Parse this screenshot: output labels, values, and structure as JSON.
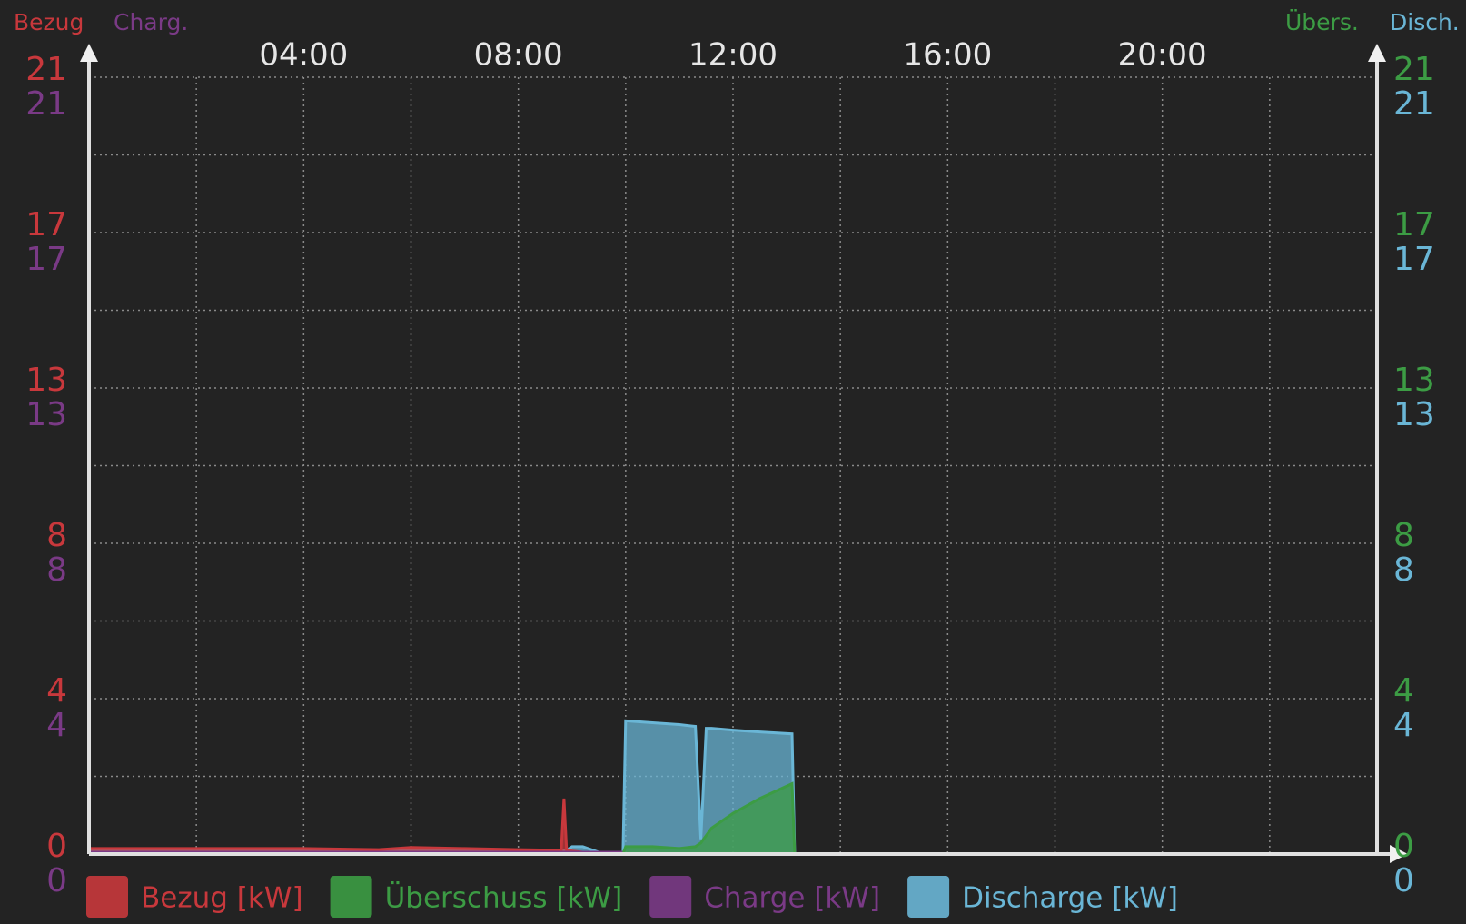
{
  "chart_data": {
    "type": "area",
    "x": [
      0,
      2,
      4,
      5.4,
      6,
      7,
      8,
      8.8,
      8.85,
      8.9,
      9,
      9.2,
      9.5,
      9.95,
      10.0,
      10.5,
      11.0,
      11.3,
      11.4,
      11.5,
      11.6,
      12,
      12.5,
      13.1,
      13.15,
      14,
      24
    ],
    "xlim": [
      0,
      24
    ],
    "xticks": [
      {
        "value": 4,
        "label": "04:00"
      },
      {
        "value": 8,
        "label": "08:00"
      },
      {
        "value": 12,
        "label": "12:00"
      },
      {
        "value": 16,
        "label": "16:00"
      },
      {
        "value": 20,
        "label": "20:00"
      }
    ],
    "xgrid": [
      2,
      4,
      6,
      8,
      10,
      12,
      14,
      16,
      18,
      20,
      22
    ],
    "ylim": [
      0,
      21
    ],
    "yticks": [
      {
        "value": 0,
        "label": "0"
      },
      {
        "value": 4.2,
        "label": "4"
      },
      {
        "value": 8.4,
        "label": "8"
      },
      {
        "value": 12.6,
        "label": "13"
      },
      {
        "value": 16.8,
        "label": "17"
      },
      {
        "value": 21,
        "label": "21"
      }
    ],
    "ygrid": [
      2.1,
      4.2,
      6.3,
      8.4,
      10.5,
      12.6,
      14.7,
      16.8,
      18.9,
      21
    ],
    "grid": true,
    "legend": "bottom",
    "series": [
      {
        "name": "Bezug [kW]",
        "axis_title": "Bezug",
        "side": "left",
        "color": "#c8383c",
        "values": [
          0.15,
          0.15,
          0.15,
          0.12,
          0.18,
          0.15,
          0.12,
          0.1,
          1.5,
          0.1,
          0.08,
          0.05,
          0.03,
          0,
          0,
          0,
          0,
          0,
          0,
          0,
          0,
          0,
          0,
          0,
          0,
          0,
          0
        ]
      },
      {
        "name": "Überschuss [kW]",
        "axis_title": "Übers.",
        "side": "right",
        "color": "#3c9c44",
        "values": [
          0,
          0,
          0,
          0,
          0,
          0,
          0,
          0,
          0,
          0,
          0,
          0,
          0,
          0,
          0.2,
          0.2,
          0.15,
          0.2,
          0.3,
          0.5,
          0.7,
          1.1,
          1.5,
          1.9,
          0,
          0,
          0
        ]
      },
      {
        "name": "Charge [kW]",
        "axis_title": "Charg.",
        "side": "left",
        "color": "#7a3a86",
        "values": [
          0.05,
          0.05,
          0.05,
          0.05,
          0.05,
          0.05,
          0.05,
          0.05,
          0.05,
          0.05,
          0.05,
          0.05,
          0.05,
          0.05,
          0,
          0,
          0,
          0,
          0,
          0,
          0,
          0,
          0,
          0,
          0,
          0,
          0
        ]
      },
      {
        "name": "Discharge [kW]",
        "axis_title": "Disch.",
        "side": "right",
        "color": "#6ab6d6",
        "values": [
          0.1,
          0.1,
          0.1,
          0.1,
          0.1,
          0.1,
          0.1,
          0.1,
          0.1,
          0.1,
          0.2,
          0.2,
          0.05,
          0.05,
          3.6,
          3.55,
          3.5,
          3.45,
          0.4,
          3.4,
          3.4,
          3.35,
          3.3,
          3.25,
          0,
          0,
          0
        ]
      }
    ]
  }
}
